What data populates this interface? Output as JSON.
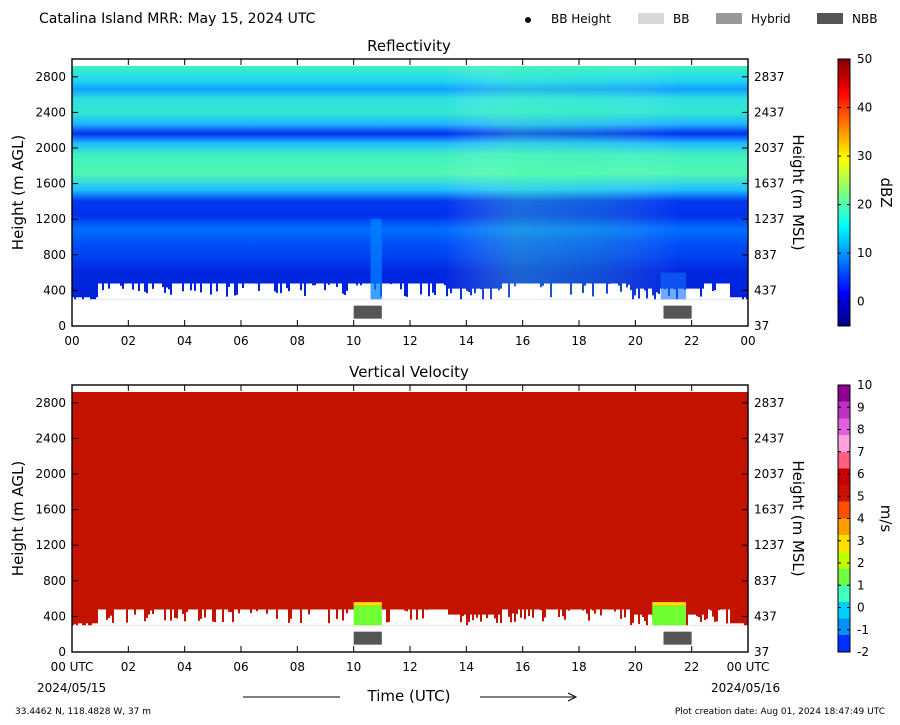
{
  "header": {
    "title": "Catalina Island MRR:  May 15, 2024 UTC",
    "legend": [
      {
        "label": "BB Height",
        "kind": "dot",
        "color": "#000000"
      },
      {
        "label": "BB",
        "kind": "box",
        "color": "#d9d9d9"
      },
      {
        "label": "Hybrid",
        "kind": "box",
        "color": "#999999"
      },
      {
        "label": "NBB",
        "kind": "box",
        "color": "#555555"
      }
    ]
  },
  "footer": {
    "location": "33.4462 N, 118.4828 W, 37 m",
    "creation": "Plot creation date: Aug 01, 2024 18:47:49 UTC",
    "xaxis_title": "Time (UTC)",
    "date_start": "2024/05/15",
    "date_end": "2024/05/16"
  },
  "colors": {
    "reflectivity_scale": [
      "#00007f",
      "#0000ff",
      "#0080ff",
      "#00ffff",
      "#80ff80",
      "#ffff00",
      "#ff8000",
      "#ff0000",
      "#7f0000"
    ],
    "velocity_palette": [
      "#0030ff",
      "#0090ff",
      "#00d0ff",
      "#40ffc0",
      "#70ff40",
      "#c0ff00",
      "#ffe000",
      "#ffa000",
      "#ff5000",
      "#cc1100",
      "#c80000",
      "#ff6080",
      "#ff9ee0",
      "#e060e0",
      "#c030c0",
      "#900090"
    ],
    "velocity_fill": "#c41200",
    "nbb_marker": "#555555"
  },
  "chart_data": [
    {
      "type": "heatmap",
      "title": "Reflectivity",
      "xlabel": "",
      "ylabel": "Height (m AGL)",
      "ylabel_right": "Height (m MSL)",
      "xlim": [
        0,
        24
      ],
      "ylim": [
        0,
        3000
      ],
      "x_ticks": [
        "00",
        "02",
        "04",
        "06",
        "08",
        "10",
        "12",
        "14",
        "16",
        "18",
        "20",
        "22",
        "00"
      ],
      "y_ticks": [
        0,
        400,
        800,
        1200,
        1600,
        2000,
        2400,
        2800
      ],
      "y_ticks_right": [
        "37",
        "437",
        "837",
        "1237",
        "1637",
        "2037",
        "2437",
        "2837"
      ],
      "colorbar": {
        "label": "dBZ",
        "range": [
          -5,
          50
        ],
        "ticks": [
          0,
          10,
          20,
          30,
          40,
          50
        ]
      },
      "nbb_periods": [
        [
          10,
          11
        ],
        [
          21,
          22
        ]
      ],
      "echo_bottom_m": 300,
      "echo_top_m": 3000
    },
    {
      "type": "heatmap",
      "title": "Vertical Velocity",
      "xlabel": "Time (UTC)",
      "ylabel": "Height (m AGL)",
      "ylabel_right": "Height (m MSL)",
      "xlim": [
        0,
        24
      ],
      "ylim": [
        0,
        3000
      ],
      "x_ticks": [
        "00 UTC",
        "02",
        "04",
        "06",
        "08",
        "10",
        "12",
        "14",
        "16",
        "18",
        "20",
        "22",
        "00 UTC"
      ],
      "y_ticks": [
        0,
        400,
        800,
        1200,
        1600,
        2000,
        2400,
        2800
      ],
      "y_ticks_right": [
        "37",
        "437",
        "837",
        "1237",
        "1637",
        "2037",
        "2437",
        "2837"
      ],
      "colorbar": {
        "label": "m/s",
        "range": [
          -2,
          10
        ],
        "ticks": [
          -2,
          -1,
          0,
          1,
          2,
          3,
          4,
          5,
          6,
          7,
          8,
          9,
          10
        ]
      },
      "nbb_periods": [
        [
          10,
          11
        ],
        [
          21,
          22
        ]
      ],
      "dominant_value_ms": 6,
      "low_value_patches": [
        [
          10,
          11,
          1.5
        ],
        [
          20.6,
          21.8,
          1.5
        ]
      ]
    }
  ]
}
